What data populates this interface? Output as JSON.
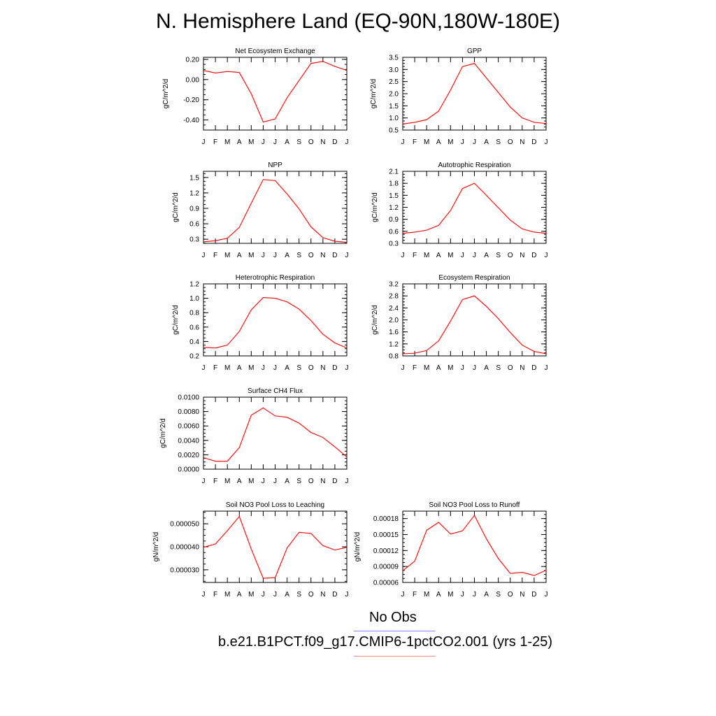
{
  "title": "N. Hemisphere Land (EQ-90N,180W-180E)",
  "colors": {
    "model": "#ff0000",
    "obs": "#8888ff"
  },
  "legend": [
    {
      "label": "No Obs",
      "color": "#8888ff"
    },
    {
      "label": "b.e21.B1PCT.f09_g17.CMIP6-1pctCO2.001 (yrs 1-25)",
      "color": "#ff8888"
    }
  ],
  "chart_data": [
    {
      "type": "line",
      "title": "Net Ecosystem Exchange",
      "ylabel": "gC/m^2/d",
      "x": [
        "J",
        "F",
        "M",
        "A",
        "M",
        "J",
        "J",
        "A",
        "S",
        "O",
        "N",
        "D",
        "J"
      ],
      "ylim": [
        -0.5,
        0.22
      ],
      "yticks": [
        0.2,
        0.0,
        -0.2,
        -0.4
      ],
      "yticklabels": [
        "0.20",
        "0.00",
        "-0.20",
        "-0.40"
      ],
      "series": [
        {
          "values": [
            0.09,
            0.065,
            0.08,
            0.07,
            -0.14,
            -0.42,
            -0.39,
            -0.18,
            -0.01,
            0.16,
            0.18,
            0.13,
            0.09
          ],
          "color": "#ff0000"
        }
      ]
    },
    {
      "type": "line",
      "title": "GPP",
      "ylabel": "gC/m^2/d",
      "x": [
        "J",
        "F",
        "M",
        "A",
        "M",
        "J",
        "J",
        "A",
        "S",
        "O",
        "N",
        "D",
        "J"
      ],
      "ylim": [
        0.5,
        3.5
      ],
      "yticks": [
        0.5,
        1.0,
        1.5,
        2.0,
        2.5,
        3.0,
        3.5
      ],
      "yticklabels": [
        "0.5",
        "1.0",
        "1.5",
        "2.0",
        "2.5",
        "3.0",
        "3.5"
      ],
      "series": [
        {
          "values": [
            0.75,
            0.82,
            0.93,
            1.28,
            2.15,
            3.12,
            3.25,
            2.65,
            2.05,
            1.45,
            1.0,
            0.82,
            0.77
          ],
          "color": "#ff0000"
        }
      ]
    },
    {
      "type": "line",
      "title": "NPP",
      "ylabel": "gC/m^2/d",
      "x": [
        "J",
        "F",
        "M",
        "A",
        "M",
        "J",
        "J",
        "A",
        "S",
        "O",
        "N",
        "D",
        "J"
      ],
      "ylim": [
        0.22,
        1.62
      ],
      "yticks": [
        0.3,
        0.6,
        0.9,
        1.2,
        1.5
      ],
      "yticklabels": [
        "0.3",
        "0.6",
        "0.9",
        "1.2",
        "1.5"
      ],
      "series": [
        {
          "values": [
            0.25,
            0.27,
            0.32,
            0.53,
            1.0,
            1.46,
            1.44,
            1.18,
            0.89,
            0.54,
            0.33,
            0.26,
            0.24
          ],
          "color": "#ff0000"
        }
      ]
    },
    {
      "type": "line",
      "title": "Autotrophic Respiration",
      "ylabel": "gC/m^2/d",
      "x": [
        "J",
        "F",
        "M",
        "A",
        "M",
        "J",
        "J",
        "A",
        "S",
        "O",
        "N",
        "D",
        "J"
      ],
      "ylim": [
        0.3,
        2.1
      ],
      "yticks": [
        0.3,
        0.6,
        0.9,
        1.2,
        1.5,
        1.8,
        2.1
      ],
      "yticklabels": [
        "0.3",
        "0.6",
        "0.9",
        "1.2",
        "1.5",
        "1.8",
        "2.1"
      ],
      "series": [
        {
          "values": [
            0.55,
            0.58,
            0.63,
            0.75,
            1.12,
            1.67,
            1.8,
            1.5,
            1.19,
            0.88,
            0.66,
            0.58,
            0.55
          ],
          "color": "#ff0000"
        }
      ]
    },
    {
      "type": "line",
      "title": "Heterotrophic Respiration",
      "ylabel": "gC/m^2/d",
      "x": [
        "J",
        "F",
        "M",
        "A",
        "M",
        "J",
        "J",
        "A",
        "S",
        "O",
        "N",
        "D",
        "J"
      ],
      "ylim": [
        0.2,
        1.2
      ],
      "yticks": [
        0.2,
        0.4,
        0.6,
        0.8,
        1.0,
        1.2
      ],
      "yticklabels": [
        "0.2",
        "0.4",
        "0.6",
        "0.8",
        "1.0",
        "1.2"
      ],
      "series": [
        {
          "values": [
            0.32,
            0.31,
            0.35,
            0.54,
            0.84,
            1.01,
            1.0,
            0.95,
            0.85,
            0.69,
            0.5,
            0.38,
            0.31
          ],
          "color": "#ff0000"
        }
      ]
    },
    {
      "type": "line",
      "title": "Ecosystem Respiration",
      "ylabel": "gC/m^2/d",
      "x": [
        "J",
        "F",
        "M",
        "A",
        "M",
        "J",
        "J",
        "A",
        "S",
        "O",
        "N",
        "D",
        "J"
      ],
      "ylim": [
        0.8,
        3.2
      ],
      "yticks": [
        0.8,
        1.2,
        1.6,
        2.0,
        2.4,
        2.8,
        3.2
      ],
      "yticklabels": [
        "0.8",
        "1.2",
        "1.6",
        "2.0",
        "2.4",
        "2.8",
        "3.2"
      ],
      "series": [
        {
          "values": [
            0.87,
            0.89,
            0.98,
            1.3,
            1.96,
            2.68,
            2.8,
            2.45,
            2.04,
            1.58,
            1.16,
            0.95,
            0.87
          ],
          "color": "#ff0000"
        }
      ]
    },
    {
      "type": "line",
      "title": "Surface CH4 Flux",
      "ylabel": "gC/m^2/d",
      "x": [
        "J",
        "F",
        "M",
        "A",
        "M",
        "J",
        "J",
        "A",
        "S",
        "O",
        "N",
        "D",
        "J"
      ],
      "ylim": [
        0.0,
        0.01
      ],
      "yticks": [
        0.0,
        0.002,
        0.004,
        0.006,
        0.008,
        0.01
      ],
      "yticklabels": [
        "0.0000",
        "0.0020",
        "0.0040",
        "0.0060",
        "0.0080",
        "0.0100"
      ],
      "series": [
        {
          "values": [
            0.0016,
            0.0011,
            0.0011,
            0.003,
            0.0075,
            0.0085,
            0.0074,
            0.0072,
            0.0064,
            0.0051,
            0.0044,
            0.0031,
            0.0017
          ],
          "color": "#ff0000"
        }
      ]
    },
    {
      "type": "line",
      "title": "Soil NO3 Pool Loss to Leaching",
      "ylabel": "gN/m^2/d",
      "x": [
        "J",
        "F",
        "M",
        "A",
        "M",
        "J",
        "J",
        "A",
        "S",
        "O",
        "N",
        "D",
        "J"
      ],
      "ylim": [
        2.45e-05,
        5.55e-05
      ],
      "yticks": [
        3e-05,
        4e-05,
        5e-05
      ],
      "yticklabels": [
        "0.000030",
        "0.000040",
        "0.000050"
      ],
      "series": [
        {
          "values": [
            3.98e-05,
            4.12e-05,
            4.7e-05,
            5.32e-05,
            3.9e-05,
            2.63e-05,
            2.66e-05,
            3.95e-05,
            4.63e-05,
            4.58e-05,
            4.05e-05,
            3.86e-05,
            3.98e-05
          ],
          "color": "#ff0000"
        }
      ]
    },
    {
      "type": "line",
      "title": "Soil NO3 Pool Loss to Runoff",
      "ylabel": "gN/m^2/d",
      "x": [
        "J",
        "F",
        "M",
        "A",
        "M",
        "J",
        "J",
        "A",
        "S",
        "O",
        "N",
        "D",
        "J"
      ],
      "ylim": [
        6e-05,
        0.000194
      ],
      "yticks": [
        6e-05,
        9e-05,
        0.00012,
        0.00015,
        0.00018
      ],
      "yticklabels": [
        "0.00006",
        "0.00009",
        "0.00012",
        "0.00015",
        "0.00018"
      ],
      "series": [
        {
          "values": [
            8.2e-05,
            0.0001,
            0.000158,
            0.000173,
            0.000151,
            0.000157,
            0.000186,
            0.000142,
            0.000105,
            7.7e-05,
            7.9e-05,
            7.3e-05,
            8.3e-05
          ],
          "color": "#ff0000"
        }
      ]
    }
  ]
}
